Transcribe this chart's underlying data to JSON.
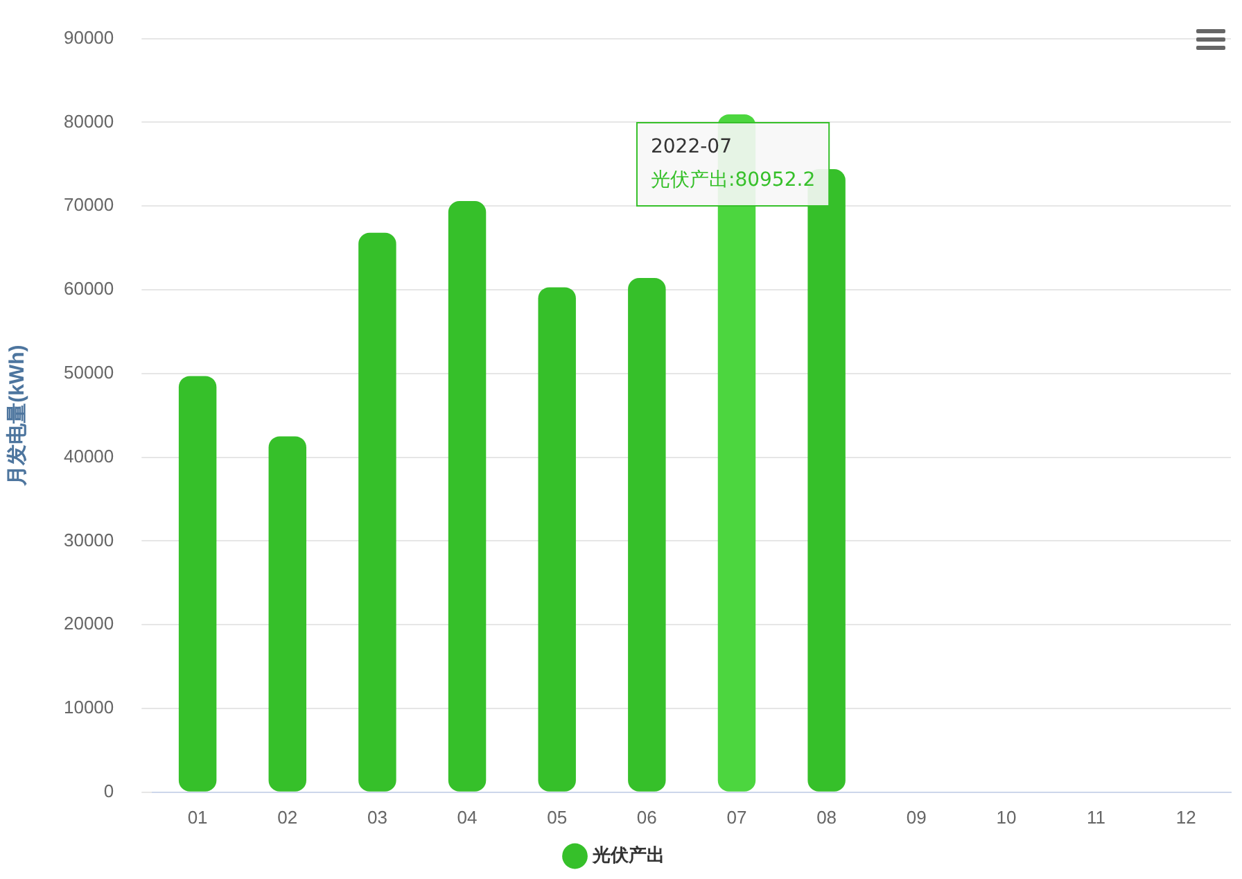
{
  "chart_data": {
    "type": "bar",
    "ylabel": "月发电量(kWh)",
    "categories": [
      "01",
      "02",
      "03",
      "04",
      "05",
      "06",
      "07",
      "08",
      "09",
      "10",
      "11",
      "12"
    ],
    "series": [
      {
        "name": "光伏产出",
        "color": "#36c02a",
        "colors": [
          "#36c02a",
          "#36c02a",
          "#36c02a",
          "#36c02a",
          "#36c02a",
          "#36c02a",
          "#4cd63f",
          "#36c02a",
          "#36c02a",
          "#36c02a",
          "#36c02a",
          "#36c02a"
        ],
        "values": [
          49700,
          42500,
          66800,
          70600,
          60300,
          61400,
          80952.2,
          74400,
          null,
          null,
          null,
          null
        ]
      }
    ],
    "ylim": [
      0,
      90000
    ],
    "yticks": [
      0,
      10000,
      20000,
      30000,
      40000,
      50000,
      60000,
      70000,
      80000,
      90000
    ],
    "grid": "y",
    "legend": "bottom",
    "annotations": [
      {
        "text": "2022-07\n光伏产出:80952.2",
        "x": "07",
        "y": 80952.2
      }
    ]
  }
}
